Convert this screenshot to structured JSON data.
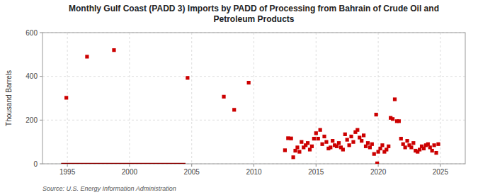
{
  "chart_data": {
    "type": "scatter",
    "title": "Monthly Gulf Coast (PADD 3) Imports by PADD of Processing from Bahrain of Crude Oil and\nPetroleum Products",
    "ylabel": "Thousand Barrels",
    "annotations": [
      "Source: U.S. Energy Information Administration"
    ],
    "xlim": [
      1993.0,
      2027.0
    ],
    "ylim": [
      0,
      600
    ],
    "xticks": [
      1995,
      2000,
      2005,
      2010,
      2015,
      2020,
      2025
    ],
    "yticks": [
      0,
      200,
      400,
      600
    ],
    "grid": true,
    "series": [
      {
        "type": "line",
        "color": "#8b0000",
        "line_style": "solid",
        "x": [
          1994.5,
          2004.5
        ],
        "values": [
          0,
          0
        ]
      },
      {
        "type": "scatter",
        "color": "#cc0000",
        "marker": "square",
        "x": [
          1994.917,
          1996.583,
          1998.75,
          2004.667,
          2007.583,
          2008.417,
          2009.583,
          2012.5,
          2012.75,
          2013.0,
          2013.167,
          2013.333,
          2013.5,
          2013.667,
          2013.833,
          2014.0,
          2014.167,
          2014.333,
          2014.5,
          2014.667,
          2014.833,
          2015.0,
          2015.167,
          2015.333,
          2015.5,
          2015.667,
          2015.833,
          2016.0,
          2016.167,
          2016.333,
          2016.5,
          2016.667,
          2016.833,
          2017.0,
          2017.167,
          2017.333,
          2017.5,
          2017.667,
          2017.833,
          2018.0,
          2018.167,
          2018.333,
          2018.5,
          2018.667,
          2018.833,
          2019.0,
          2019.167,
          2019.333,
          2019.5,
          2019.667,
          2019.833,
          2019.917,
          2020.0,
          2020.167,
          2020.333,
          2020.5,
          2020.667,
          2020.833,
          2021.0,
          2021.167,
          2021.333,
          2021.5,
          2021.667,
          2021.833,
          2022.0,
          2022.167,
          2022.333,
          2022.5,
          2022.667,
          2022.833,
          2023.0,
          2023.167,
          2023.333,
          2023.5,
          2023.667,
          2023.833,
          2024.0,
          2024.167,
          2024.333,
          2024.5,
          2024.667,
          2024.833
        ],
        "values": [
          302,
          490,
          520,
          393,
          307,
          247,
          371,
          62,
          117,
          116,
          30,
          60,
          75,
          55,
          100,
          75,
          85,
          95,
          65,
          80,
          115,
          140,
          115,
          155,
          90,
          125,
          100,
          70,
          75,
          105,
          85,
          80,
          95,
          75,
          65,
          135,
          110,
          85,
          125,
          100,
          145,
          155,
          120,
          105,
          130,
          80,
          95,
          75,
          90,
          45,
          225,
          2,
          55,
          70,
          85,
          55,
          65,
          80,
          210,
          205,
          295,
          195,
          195,
          115,
          90,
          75,
          105,
          85,
          75,
          95,
          60,
          55,
          65,
          80,
          70,
          85,
          90,
          75,
          60,
          85,
          50,
          90
        ]
      }
    ]
  }
}
